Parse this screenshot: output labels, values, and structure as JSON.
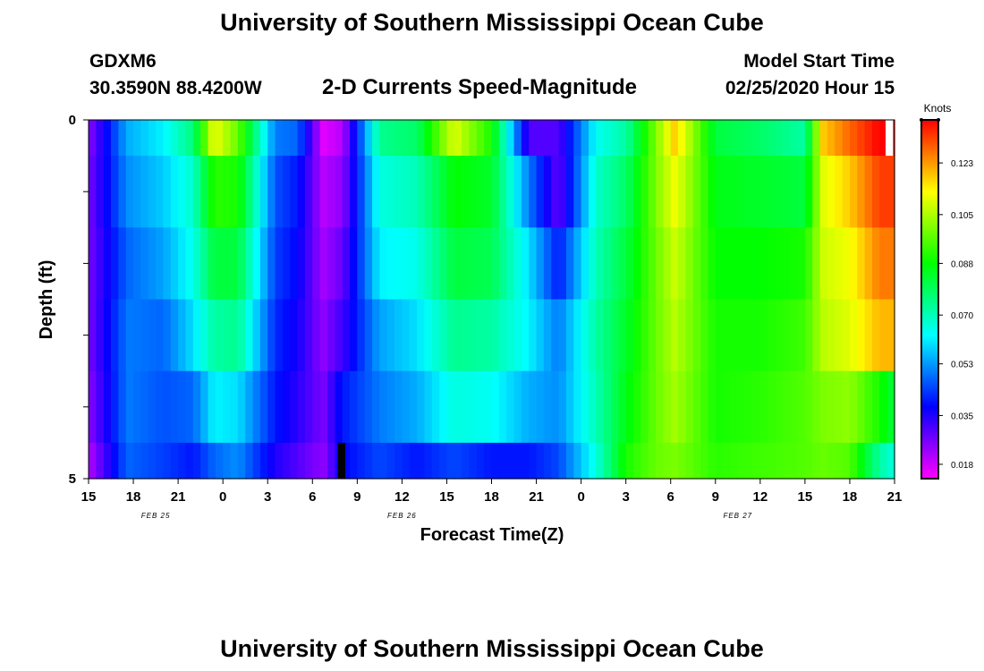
{
  "header": {
    "title_top": "University of Southern Mississippi Ocean Cube",
    "title_bottom": "University of Southern Mississippi Ocean Cube",
    "station": "GDXM6",
    "coords": "30.3590N 88.4200W",
    "plot_title": "2-D Currents Speed-Magnitude",
    "model_start_label": "Model Start Time",
    "model_start_value": "02/25/2020 Hour 15"
  },
  "chart_data": {
    "type": "heatmap",
    "title": "2-D Currents Speed-Magnitude",
    "xlabel": "Forecast Time(Z)",
    "ylabel": "Depth (ft)",
    "x_ticks": [
      "15",
      "18",
      "21",
      "0",
      "3",
      "6",
      "9",
      "12",
      "15",
      "18",
      "21",
      "0",
      "3",
      "6",
      "9",
      "12",
      "15",
      "18",
      "21"
    ],
    "y_ticks": [
      "0",
      "5"
    ],
    "ylim": [
      0,
      5
    ],
    "date_labels": [
      {
        "text": "FEB 25",
        "at_hour": 4.5
      },
      {
        "text": "FEB 26",
        "at_hour": 21
      },
      {
        "text": "FEB 27",
        "at_hour": 43.5
      }
    ],
    "hours_span": 54,
    "colorbar": {
      "unit_label": "Knots",
      "min": 0.013,
      "max": 0.138,
      "ticks": [
        "0.018",
        "0.035",
        "0.053",
        "0.070",
        "0.088",
        "0.105",
        "0.123"
      ],
      "tick_values": [
        0.018,
        0.035,
        0.053,
        0.07,
        0.088,
        0.105,
        0.123
      ]
    },
    "depth_bands_ft": [
      [
        0,
        0.5
      ],
      [
        0.5,
        1.5
      ],
      [
        1.5,
        2.5
      ],
      [
        2.5,
        3.5
      ],
      [
        3.5,
        4.5
      ],
      [
        4.5,
        5.0
      ]
    ],
    "missing_color": "#000000",
    "missing_cells": [
      {
        "hour": 16.7,
        "layer": 5,
        "width_hours": 0.5
      }
    ],
    "blank_cells": [
      {
        "hour": 53.4,
        "layer": 0,
        "width_hours": 0.5
      }
    ],
    "speed_profile_keyframes": [
      {
        "hour": 0,
        "speeds": [
          0.024,
          0.026,
          0.026,
          0.026,
          0.024,
          0.02
        ]
      },
      {
        "hour": 2.6,
        "speeds": [
          0.055,
          0.052,
          0.048,
          0.05,
          0.05,
          0.048
        ]
      },
      {
        "hour": 5,
        "speeds": [
          0.062,
          0.058,
          0.054,
          0.048,
          0.046,
          0.044
        ]
      },
      {
        "hour": 7,
        "speeds": [
          0.076,
          0.068,
          0.065,
          0.06,
          0.048,
          0.04
        ]
      },
      {
        "hour": 8.4,
        "speeds": [
          0.112,
          0.092,
          0.082,
          0.072,
          0.062,
          0.048
        ]
      },
      {
        "hour": 10,
        "speeds": [
          0.098,
          0.09,
          0.082,
          0.074,
          0.06,
          0.052
        ]
      },
      {
        "hour": 12.5,
        "speeds": [
          0.05,
          0.046,
          0.044,
          0.042,
          0.04,
          0.035
        ]
      },
      {
        "hour": 14,
        "speeds": [
          0.048,
          0.04,
          0.038,
          0.036,
          0.034,
          0.03
        ]
      },
      {
        "hour": 15.7,
        "speeds": [
          0.016,
          0.02,
          0.022,
          0.024,
          0.026,
          0.024
        ]
      },
      {
        "hour": 17,
        "speeds": [
          0.02,
          0.024,
          0.028,
          0.032,
          0.04,
          0.038
        ]
      },
      {
        "hour": 19.5,
        "speeds": [
          0.074,
          0.066,
          0.062,
          0.054,
          0.05,
          0.045
        ]
      },
      {
        "hour": 22,
        "speeds": [
          0.078,
          0.07,
          0.065,
          0.06,
          0.055,
          0.04
        ]
      },
      {
        "hour": 24.5,
        "speeds": [
          0.11,
          0.088,
          0.082,
          0.074,
          0.066,
          0.045
        ]
      },
      {
        "hour": 27,
        "speeds": [
          0.09,
          0.084,
          0.08,
          0.072,
          0.064,
          0.04
        ]
      },
      {
        "hour": 29.5,
        "speeds": [
          0.03,
          0.05,
          0.06,
          0.062,
          0.055,
          0.04
        ]
      },
      {
        "hour": 31.5,
        "speeds": [
          0.03,
          0.028,
          0.04,
          0.05,
          0.052,
          0.045
        ]
      },
      {
        "hour": 34,
        "speeds": [
          0.064,
          0.068,
          0.07,
          0.072,
          0.07,
          0.066
        ]
      },
      {
        "hour": 36,
        "speeds": [
          0.072,
          0.078,
          0.082,
          0.084,
          0.086,
          0.09
        ]
      },
      {
        "hour": 38,
        "speeds": [
          0.1,
          0.1,
          0.098,
          0.098,
          0.098,
          0.098
        ]
      },
      {
        "hour": 39.3,
        "speeds": [
          0.118,
          0.112,
          0.108,
          0.106,
          0.104,
          0.1
        ]
      },
      {
        "hour": 42,
        "speeds": [
          0.082,
          0.086,
          0.088,
          0.09,
          0.09,
          0.092
        ]
      },
      {
        "hour": 45,
        "speeds": [
          0.078,
          0.084,
          0.088,
          0.09,
          0.092,
          0.094
        ]
      },
      {
        "hour": 48,
        "speeds": [
          0.072,
          0.082,
          0.09,
          0.094,
          0.096,
          0.096
        ]
      },
      {
        "hour": 49.2,
        "speeds": [
          0.118,
          0.11,
          0.108,
          0.106,
          0.1,
          0.098
        ]
      },
      {
        "hour": 51,
        "speeds": [
          0.128,
          0.118,
          0.112,
          0.11,
          0.102,
          0.096
        ]
      },
      {
        "hour": 53,
        "speeds": [
          0.138,
          0.132,
          0.126,
          0.12,
          0.09,
          0.072
        ]
      },
      {
        "hour": 54,
        "speeds": [
          0.138,
          0.132,
          0.126,
          0.12,
          0.082,
          0.066
        ]
      }
    ]
  }
}
